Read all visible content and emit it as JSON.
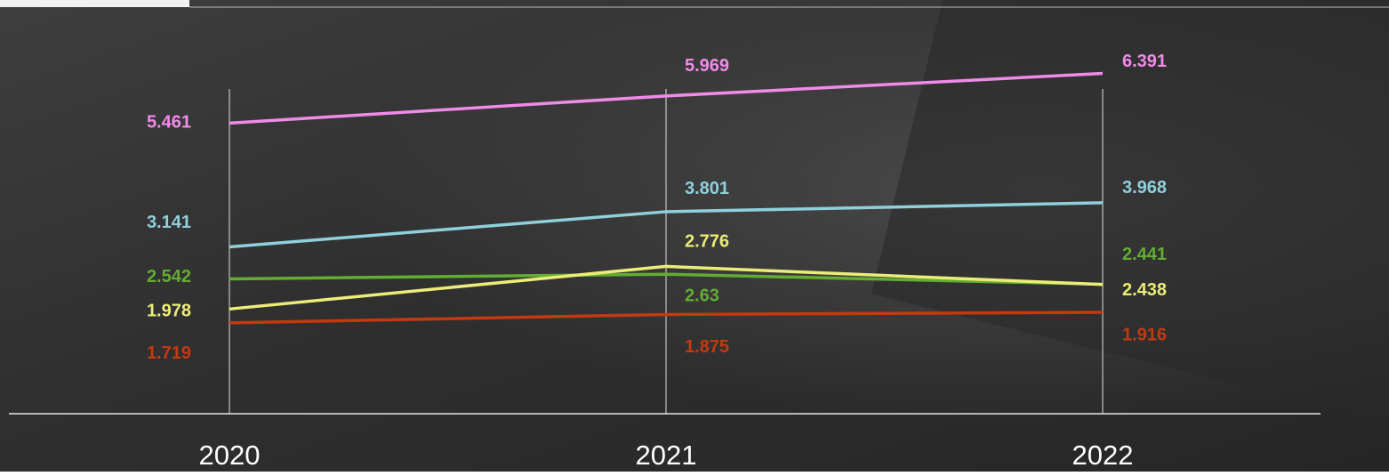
{
  "chart_data": {
    "type": "line",
    "categories": [
      "2020",
      "2021",
      "2022"
    ],
    "series": [
      {
        "color": "#f08be8",
        "values": [
          5.461,
          5.969,
          6.391
        ]
      },
      {
        "color": "#8fd0dc",
        "values": [
          3.141,
          3.801,
          3.968
        ]
      },
      {
        "color": "#62ad32",
        "values": [
          2.542,
          2.63,
          2.441
        ]
      },
      {
        "color": "#ecec78",
        "values": [
          1.978,
          2.776,
          2.438
        ]
      },
      {
        "color": "#c43a10",
        "values": [
          1.719,
          1.875,
          1.916
        ]
      }
    ],
    "ylim": [
      0,
      7.5
    ],
    "grid": true
  }
}
